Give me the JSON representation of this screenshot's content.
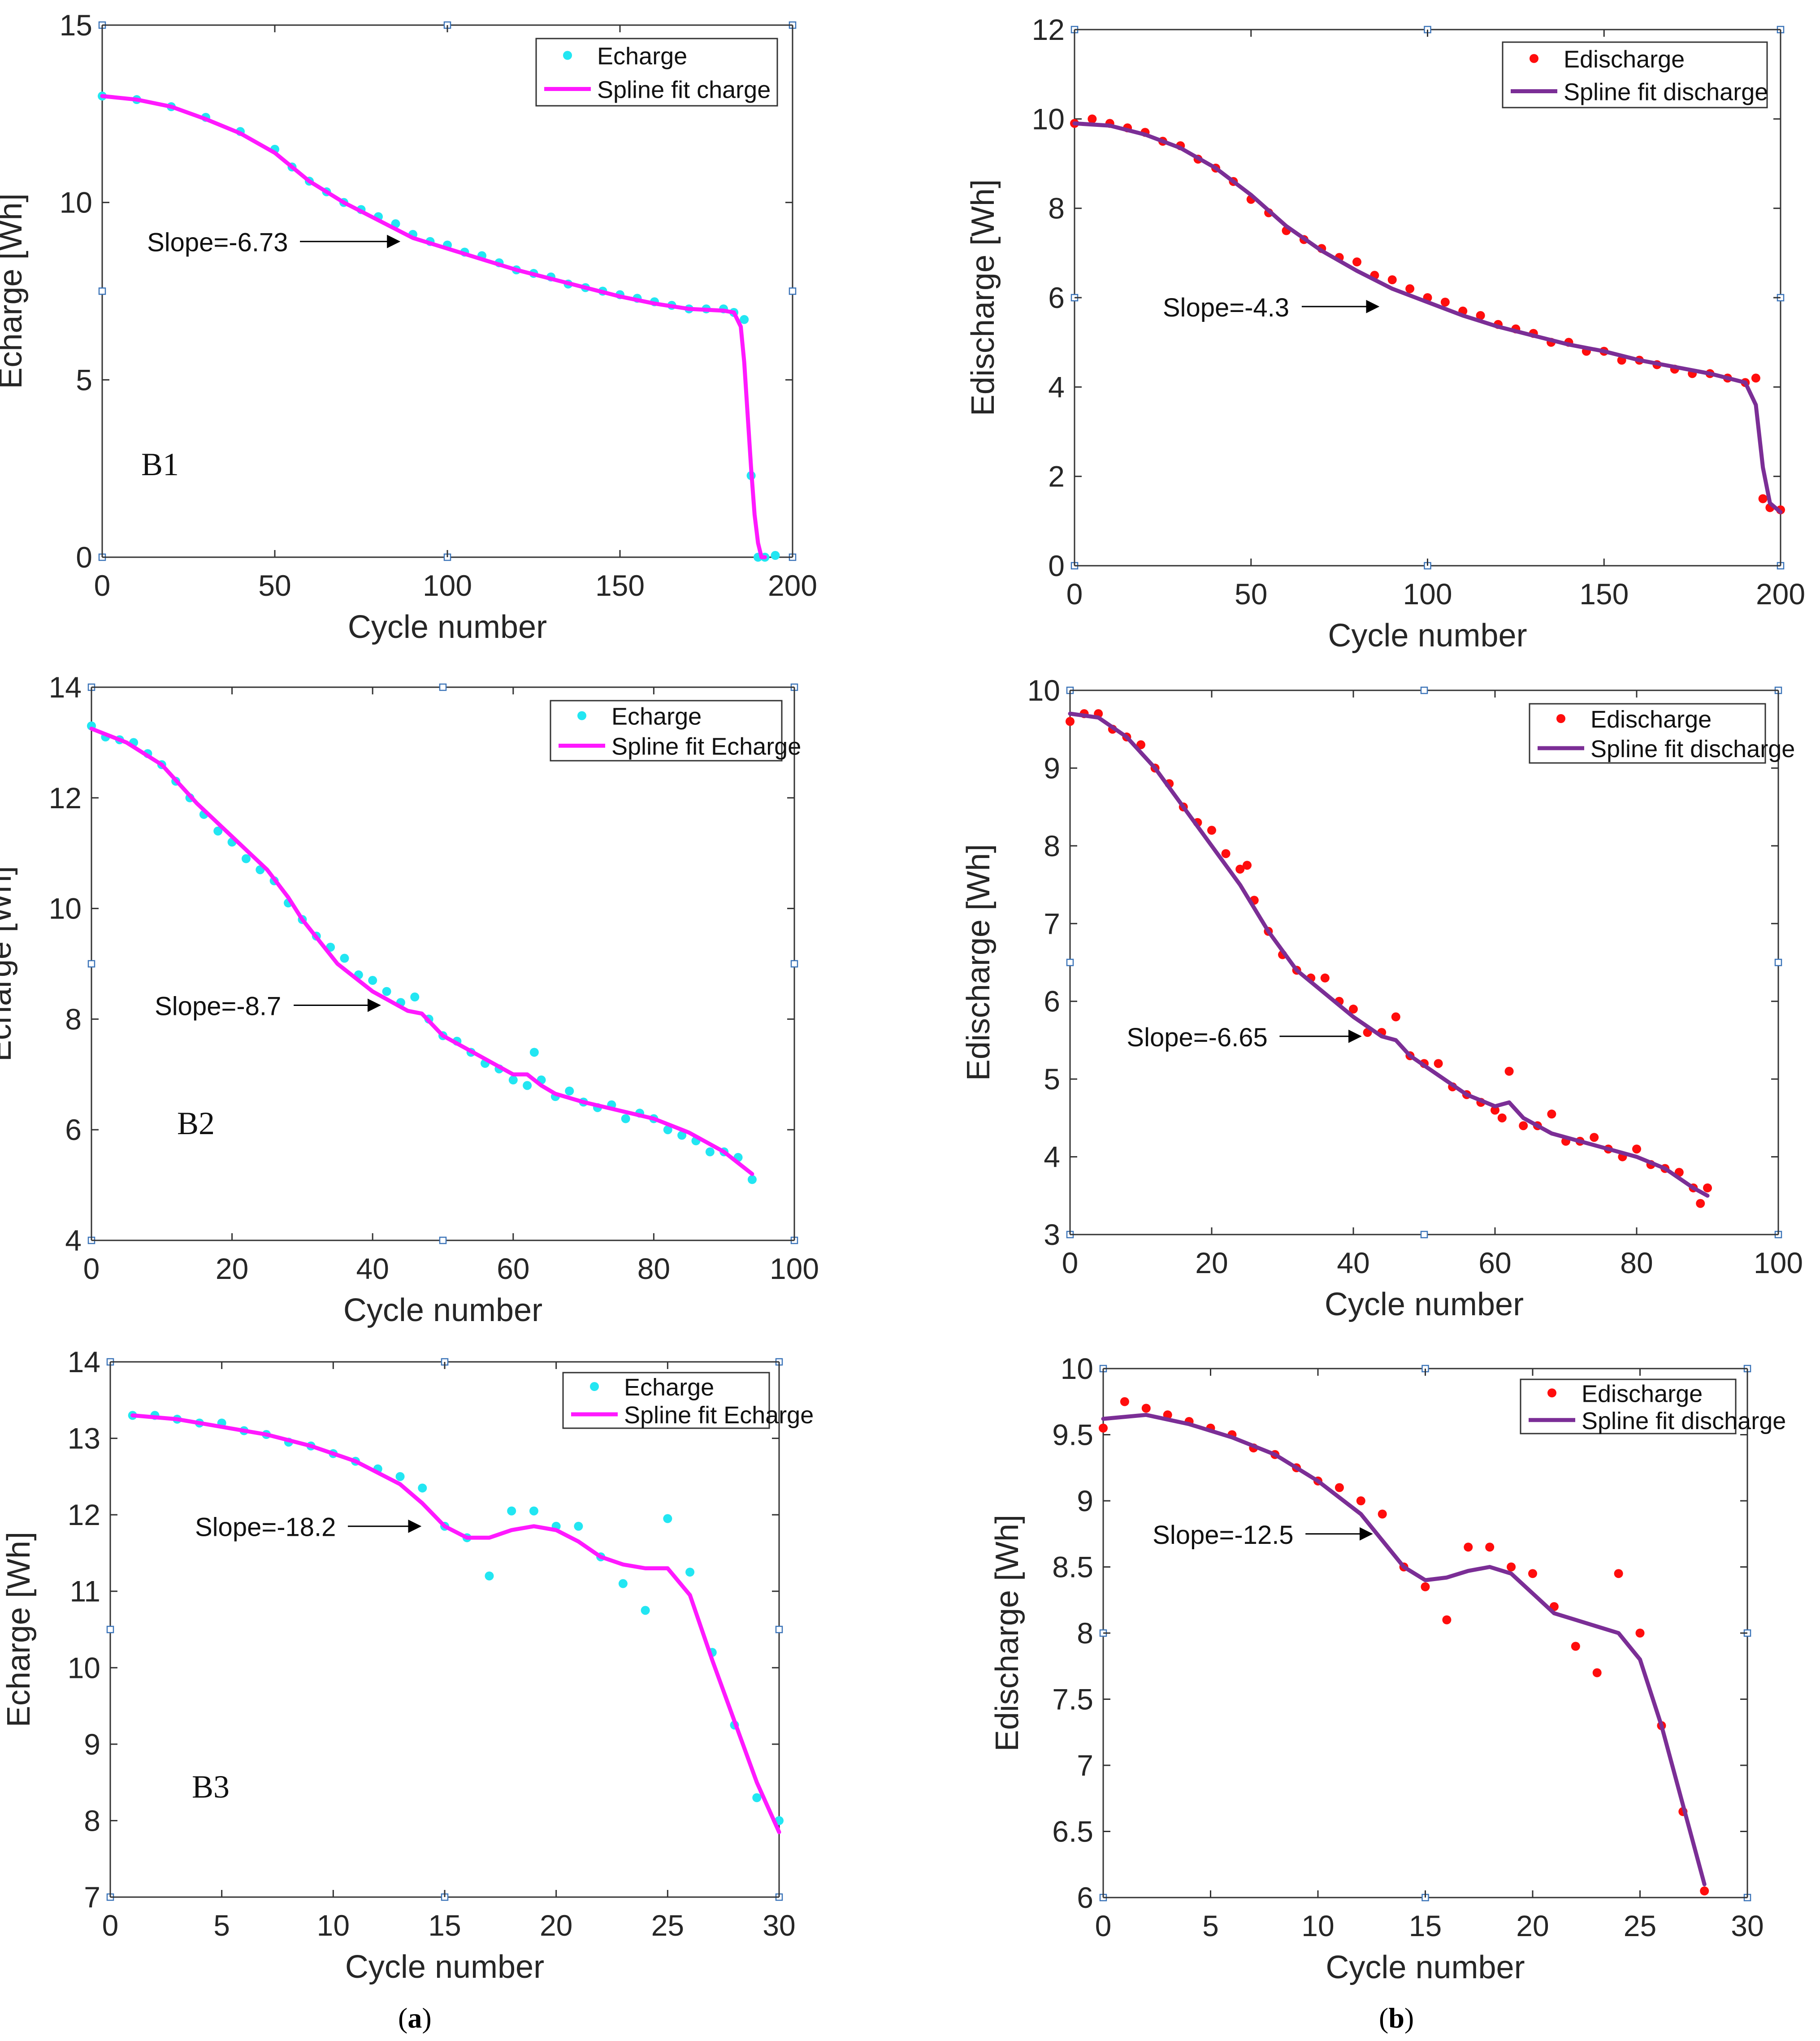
{
  "colors": {
    "charge_marker": "#22e6f2",
    "charge_line": "#ff19ff",
    "discharge_marker": "#ff0d0d",
    "discharge_line": "#7b2e96"
  },
  "captions": {
    "a": {
      "open": "(",
      "letter": "a",
      "close": ")"
    },
    "b": {
      "open": "(",
      "letter": "b",
      "close": ")"
    }
  },
  "chart_data": [
    {
      "id": "B1-charge",
      "type": "scatter",
      "xlabel": "Cycle number",
      "ylabel": "Echarge [Wh]",
      "xlim": [
        0,
        200
      ],
      "ylim": [
        0,
        15
      ],
      "xticks": [
        0,
        50,
        100,
        150,
        200
      ],
      "yticks": [
        0,
        5,
        10,
        15
      ],
      "cell_label": "B1",
      "annotation": {
        "text": "Slope=-6.73",
        "x": 13,
        "y": 8.9,
        "arrow_to": [
          86,
          8.9
        ]
      },
      "series": [
        {
          "name": "Echarge",
          "style": "markers",
          "color_key": "charge_marker",
          "x": [
            0,
            10,
            20,
            30,
            40,
            50,
            55,
            60,
            65,
            70,
            75,
            80,
            85,
            90,
            95,
            100,
            105,
            110,
            115,
            120,
            125,
            130,
            135,
            140,
            145,
            150,
            155,
            160,
            165,
            170,
            175,
            180,
            183,
            186,
            188,
            190,
            192,
            195
          ],
          "y": [
            13.0,
            12.9,
            12.7,
            12.4,
            12.0,
            11.5,
            11.0,
            10.6,
            10.3,
            10.0,
            9.8,
            9.6,
            9.4,
            9.1,
            8.9,
            8.8,
            8.6,
            8.5,
            8.3,
            8.1,
            8.0,
            7.9,
            7.7,
            7.6,
            7.5,
            7.4,
            7.3,
            7.2,
            7.1,
            7.0,
            7.0,
            7.0,
            6.9,
            6.7,
            2.3,
            0.0,
            0.0,
            0.05
          ]
        },
        {
          "name": "Spline fit charge",
          "style": "line",
          "color_key": "charge_line",
          "x": [
            0,
            10,
            20,
            30,
            40,
            50,
            60,
            70,
            80,
            90,
            100,
            110,
            120,
            130,
            140,
            150,
            160,
            170,
            180,
            183,
            185,
            186,
            187,
            188,
            189,
            190,
            191,
            192
          ],
          "y": [
            13.0,
            12.9,
            12.7,
            12.35,
            11.95,
            11.4,
            10.6,
            10.0,
            9.5,
            9.0,
            8.7,
            8.4,
            8.1,
            7.85,
            7.6,
            7.35,
            7.15,
            7.0,
            6.95,
            6.9,
            6.5,
            5.5,
            4.0,
            2.5,
            1.2,
            0.4,
            0.0,
            0.0
          ]
        }
      ],
      "legend": "top-right"
    },
    {
      "id": "B1-discharge",
      "type": "scatter",
      "xlabel": "Cycle number",
      "ylabel": "Edischarge [Wh]",
      "xlim": [
        0,
        200
      ],
      "ylim": [
        0,
        12
      ],
      "xticks": [
        0,
        50,
        100,
        150,
        200
      ],
      "yticks": [
        0,
        2,
        4,
        6,
        8,
        10,
        12
      ],
      "annotation": {
        "text": "Slope=-4.3",
        "x": 25,
        "y": 5.8,
        "arrow_to": [
          86,
          5.8
        ]
      },
      "series": [
        {
          "name": "Edischarge",
          "style": "markers",
          "color_key": "discharge_marker",
          "x": [
            0,
            5,
            10,
            15,
            20,
            25,
            30,
            35,
            40,
            45,
            50,
            55,
            60,
            65,
            70,
            75,
            80,
            85,
            90,
            95,
            100,
            105,
            110,
            115,
            120,
            125,
            130,
            135,
            140,
            145,
            150,
            155,
            160,
            165,
            170,
            175,
            180,
            185,
            190,
            193,
            195,
            197,
            200
          ],
          "y": [
            9.9,
            10.0,
            9.9,
            9.8,
            9.7,
            9.5,
            9.4,
            9.1,
            8.9,
            8.6,
            8.2,
            7.9,
            7.5,
            7.3,
            7.1,
            6.9,
            6.8,
            6.5,
            6.4,
            6.2,
            6.0,
            5.9,
            5.7,
            5.6,
            5.4,
            5.3,
            5.2,
            5.0,
            5.0,
            4.8,
            4.8,
            4.6,
            4.6,
            4.5,
            4.4,
            4.3,
            4.3,
            4.2,
            4.1,
            4.2,
            1.5,
            1.3,
            1.25
          ]
        },
        {
          "name": "Spline fit discharge",
          "style": "line",
          "color_key": "discharge_line",
          "x": [
            0,
            10,
            20,
            30,
            40,
            50,
            60,
            70,
            80,
            90,
            100,
            110,
            120,
            130,
            140,
            150,
            160,
            170,
            180,
            190,
            193,
            195,
            197,
            200
          ],
          "y": [
            9.9,
            9.85,
            9.65,
            9.35,
            8.9,
            8.3,
            7.6,
            7.05,
            6.6,
            6.2,
            5.9,
            5.6,
            5.35,
            5.15,
            4.95,
            4.8,
            4.6,
            4.45,
            4.3,
            4.1,
            3.6,
            2.2,
            1.4,
            1.2
          ]
        }
      ],
      "legend": "top-right"
    },
    {
      "id": "B2-charge",
      "type": "scatter",
      "xlabel": "Cycle number",
      "ylabel": "Echarge [Wh]",
      "xlim": [
        0,
        100
      ],
      "ylim": [
        4,
        14
      ],
      "xticks": [
        0,
        20,
        40,
        60,
        80,
        100
      ],
      "yticks": [
        4,
        6,
        8,
        10,
        12,
        14
      ],
      "cell_label": "B2",
      "annotation": {
        "text": "Slope=-8.7",
        "x": 9,
        "y": 8.25,
        "arrow_to": [
          41,
          8.25
        ]
      },
      "series": [
        {
          "name": "Echarge",
          "style": "markers",
          "color_key": "charge_marker",
          "x": [
            0,
            2,
            4,
            6,
            8,
            10,
            12,
            14,
            16,
            18,
            20,
            22,
            24,
            26,
            28,
            30,
            32,
            34,
            36,
            38,
            40,
            42,
            44,
            46,
            48,
            50,
            52,
            54,
            56,
            58,
            60,
            62,
            63,
            64,
            66,
            68,
            70,
            72,
            74,
            76,
            78,
            80,
            82,
            84,
            86,
            88,
            90,
            92,
            94
          ],
          "y": [
            13.3,
            13.1,
            13.05,
            13.0,
            12.8,
            12.6,
            12.3,
            12.0,
            11.7,
            11.4,
            11.2,
            10.9,
            10.7,
            10.5,
            10.1,
            9.8,
            9.5,
            9.3,
            9.1,
            8.8,
            8.7,
            8.5,
            8.3,
            8.4,
            8.0,
            7.7,
            7.6,
            7.4,
            7.2,
            7.1,
            6.9,
            6.8,
            7.4,
            6.9,
            6.6,
            6.7,
            6.5,
            6.4,
            6.45,
            6.2,
            6.3,
            6.2,
            6.0,
            5.9,
            5.8,
            5.6,
            5.6,
            5.5,
            5.1
          ]
        },
        {
          "name": "Spline fit Echarge",
          "style": "line",
          "color_key": "charge_line",
          "x": [
            0,
            5,
            10,
            15,
            20,
            25,
            28,
            30,
            35,
            40,
            45,
            47,
            50,
            55,
            60,
            62,
            64,
            66,
            70,
            75,
            80,
            85,
            90,
            94
          ],
          "y": [
            13.25,
            13.0,
            12.6,
            11.9,
            11.3,
            10.7,
            10.2,
            9.8,
            9.0,
            8.5,
            8.15,
            8.1,
            7.7,
            7.35,
            7.0,
            7.0,
            6.8,
            6.65,
            6.5,
            6.35,
            6.2,
            5.95,
            5.6,
            5.2
          ]
        }
      ],
      "legend": "top-right"
    },
    {
      "id": "B2-discharge",
      "type": "scatter",
      "xlabel": "Cycle number",
      "ylabel": "Edischarge [Wh]",
      "xlim": [
        0,
        100
      ],
      "ylim": [
        3,
        10
      ],
      "xticks": [
        0,
        20,
        40,
        60,
        80,
        100
      ],
      "yticks": [
        3,
        4,
        5,
        6,
        7,
        8,
        9,
        10
      ],
      "annotation": {
        "text": "Slope=-6.65",
        "x": 8,
        "y": 5.55,
        "arrow_to": [
          41,
          5.55
        ]
      },
      "series": [
        {
          "name": "Edischarge",
          "style": "markers",
          "color_key": "discharge_marker",
          "x": [
            0,
            2,
            4,
            6,
            8,
            10,
            12,
            14,
            16,
            18,
            20,
            22,
            24,
            25,
            26,
            28,
            30,
            32,
            34,
            36,
            38,
            40,
            42,
            44,
            46,
            48,
            50,
            52,
            54,
            56,
            58,
            60,
            61,
            62,
            64,
            66,
            68,
            70,
            72,
            74,
            76,
            78,
            80,
            82,
            84,
            86,
            88,
            89,
            90
          ],
          "y": [
            9.6,
            9.7,
            9.7,
            9.5,
            9.4,
            9.3,
            9.0,
            8.8,
            8.5,
            8.3,
            8.2,
            7.9,
            7.7,
            7.75,
            7.3,
            6.9,
            6.6,
            6.4,
            6.3,
            6.3,
            6.0,
            5.9,
            5.6,
            5.6,
            5.8,
            5.3,
            5.2,
            5.2,
            4.9,
            4.8,
            4.7,
            4.6,
            4.5,
            5.1,
            4.4,
            4.4,
            4.55,
            4.2,
            4.2,
            4.25,
            4.1,
            4.0,
            4.1,
            3.9,
            3.85,
            3.8,
            3.6,
            3.4,
            3.6
          ]
        },
        {
          "name": "Spline fit discharge",
          "style": "line",
          "color_key": "discharge_line",
          "x": [
            0,
            4,
            8,
            12,
            16,
            20,
            24,
            28,
            32,
            36,
            40,
            44,
            46,
            48,
            52,
            56,
            60,
            62,
            64,
            68,
            72,
            76,
            80,
            84,
            88,
            90
          ],
          "y": [
            9.7,
            9.65,
            9.4,
            9.0,
            8.5,
            8.0,
            7.5,
            6.9,
            6.4,
            6.1,
            5.8,
            5.55,
            5.5,
            5.3,
            5.05,
            4.8,
            4.65,
            4.7,
            4.5,
            4.3,
            4.2,
            4.1,
            4.0,
            3.85,
            3.6,
            3.5
          ]
        }
      ],
      "legend": "top-right"
    },
    {
      "id": "B3-charge",
      "type": "scatter",
      "xlabel": "Cycle number",
      "ylabel": "Echarge [Wh]",
      "xlim": [
        0,
        30
      ],
      "ylim": [
        7,
        14
      ],
      "xticks": [
        0,
        5,
        10,
        15,
        20,
        25,
        30
      ],
      "yticks": [
        7,
        8,
        9,
        10,
        11,
        12,
        13,
        14
      ],
      "cell_label": "B3",
      "annotation": {
        "text": "Slope=-18.2",
        "x": 3.8,
        "y": 11.85,
        "arrow_to": [
          13.9,
          11.85
        ]
      },
      "series": [
        {
          "name": "Echarge",
          "style": "markers",
          "color_key": "charge_marker",
          "x": [
            1,
            2,
            3,
            4,
            5,
            6,
            7,
            8,
            9,
            10,
            11,
            12,
            13,
            14,
            15,
            16,
            17,
            18,
            19,
            20,
            21,
            22,
            23,
            24,
            25,
            26,
            27,
            28,
            29,
            30
          ],
          "y": [
            13.3,
            13.3,
            13.25,
            13.2,
            13.2,
            13.1,
            13.05,
            12.95,
            12.9,
            12.8,
            12.7,
            12.6,
            12.5,
            12.35,
            11.85,
            11.7,
            11.2,
            12.05,
            12.05,
            11.85,
            11.85,
            11.45,
            11.1,
            10.75,
            11.95,
            11.25,
            10.2,
            9.25,
            8.3,
            8.0
          ]
        },
        {
          "name": "Spline fit Echarge",
          "style": "line",
          "color_key": "charge_line",
          "x": [
            1,
            3,
            5,
            7,
            9,
            11,
            13,
            14,
            15,
            16,
            17,
            18,
            19,
            20,
            21,
            22,
            23,
            24,
            25,
            26,
            27,
            28,
            29,
            30
          ],
          "y": [
            13.3,
            13.25,
            13.15,
            13.05,
            12.9,
            12.7,
            12.4,
            12.15,
            11.85,
            11.7,
            11.7,
            11.8,
            11.85,
            11.8,
            11.65,
            11.45,
            11.35,
            11.3,
            11.3,
            10.95,
            10.1,
            9.3,
            8.5,
            7.85
          ]
        }
      ],
      "legend": "top-right"
    },
    {
      "id": "B3-discharge",
      "type": "scatter",
      "xlabel": "Cycle number",
      "ylabel": "Edischarge [Wh]",
      "xlim": [
        0,
        30
      ],
      "ylim": [
        6,
        10
      ],
      "xticks": [
        0,
        5,
        10,
        15,
        20,
        25,
        30
      ],
      "yticks": [
        6,
        6.5,
        7,
        7.5,
        8,
        8.5,
        9,
        9.5,
        10
      ],
      "annotation": {
        "text": "Slope=-12.5",
        "x": 2.3,
        "y": 8.75,
        "arrow_to": [
          12.5,
          8.75
        ]
      },
      "series": [
        {
          "name": "Edischarge",
          "style": "markers",
          "color_key": "discharge_marker",
          "x": [
            0,
            1,
            2,
            3,
            4,
            5,
            6,
            7,
            8,
            9,
            10,
            11,
            12,
            13,
            14,
            15,
            16,
            17,
            18,
            19,
            20,
            21,
            22,
            23,
            24,
            25,
            26,
            27,
            28
          ],
          "y": [
            9.55,
            9.75,
            9.7,
            9.65,
            9.6,
            9.55,
            9.5,
            9.4,
            9.35,
            9.25,
            9.15,
            9.1,
            9.0,
            8.9,
            8.5,
            8.35,
            8.1,
            8.65,
            8.65,
            8.5,
            8.45,
            8.2,
            7.9,
            7.7,
            8.45,
            8.0,
            7.3,
            6.65,
            6.05
          ]
        },
        {
          "name": "Spline fit discharge",
          "style": "line",
          "color_key": "discharge_line",
          "x": [
            0,
            2,
            4,
            6,
            8,
            10,
            12,
            13,
            14,
            15,
            16,
            17,
            18,
            19,
            20,
            21,
            22,
            23,
            24,
            25,
            26,
            27,
            28
          ],
          "y": [
            9.62,
            9.65,
            9.58,
            9.48,
            9.35,
            9.15,
            8.9,
            8.7,
            8.5,
            8.4,
            8.42,
            8.47,
            8.5,
            8.45,
            8.3,
            8.15,
            8.1,
            8.05,
            8.0,
            7.8,
            7.3,
            6.7,
            6.1
          ]
        }
      ],
      "legend": "top-right"
    }
  ]
}
